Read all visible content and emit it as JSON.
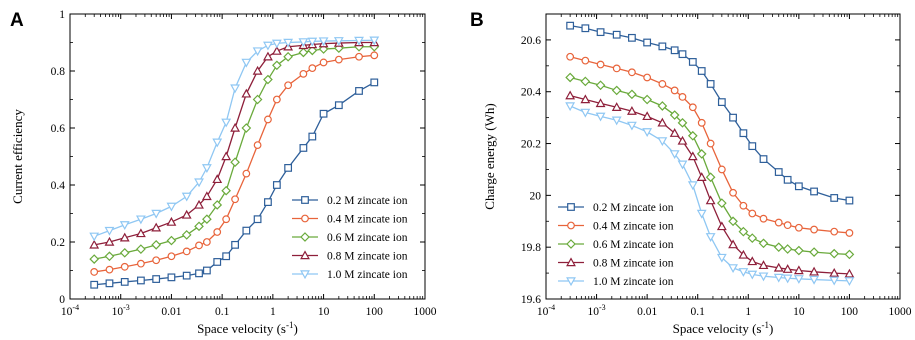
{
  "chart_data": [
    {
      "panel_label": "A",
      "type": "line",
      "xscale": "log",
      "xlabel": "Space velocity (s",
      "xlabel_sup": "-1",
      "xlabel_end": ")",
      "ylabel": "Current efficiency",
      "xlim": [
        0.0001,
        1000
      ],
      "ylim": [
        0,
        1
      ],
      "yticks": [
        "0",
        "0.2",
        "0.4",
        "0.6",
        "0.8",
        "1"
      ],
      "yticks_values": [
        0,
        0.2,
        0.4,
        0.6,
        0.8,
        1
      ],
      "xticks_values": [
        0.0001,
        0.001,
        0.01,
        0.1,
        1,
        10,
        100,
        1000
      ],
      "xticks": [
        {
          "base": "10",
          "exp": "-4"
        },
        {
          "base": "10",
          "exp": "-3"
        },
        {
          "base": "0.01",
          "exp": ""
        },
        {
          "base": "0.1",
          "exp": ""
        },
        {
          "base": "1",
          "exp": ""
        },
        {
          "base": "10",
          "exp": ""
        },
        {
          "base": "100",
          "exp": ""
        },
        {
          "base": "1000",
          "exp": ""
        }
      ],
      "grid": false,
      "legend_position": "bottom-right",
      "x": [
        0.0003,
        0.0006,
        0.0012,
        0.0025,
        0.005,
        0.01,
        0.02,
        0.035,
        0.05,
        0.08,
        0.12,
        0.18,
        0.3,
        0.5,
        0.8,
        1.2,
        2,
        4,
        6,
        10,
        20,
        50,
        100
      ],
      "series": [
        {
          "name": "0.2 M zincate ion",
          "marker": "square",
          "color": "#2e5f9a",
          "values": [
            0.05,
            0.055,
            0.06,
            0.065,
            0.07,
            0.076,
            0.082,
            0.09,
            0.1,
            0.13,
            0.15,
            0.19,
            0.24,
            0.28,
            0.34,
            0.4,
            0.46,
            0.53,
            0.57,
            0.65,
            0.68,
            0.73,
            0.76
          ]
        },
        {
          "name": "0.4 M zincate ion",
          "marker": "circle",
          "color": "#e8643b",
          "values": [
            0.095,
            0.103,
            0.113,
            0.124,
            0.136,
            0.15,
            0.167,
            0.188,
            0.2,
            0.235,
            0.28,
            0.35,
            0.44,
            0.54,
            0.63,
            0.7,
            0.75,
            0.79,
            0.81,
            0.83,
            0.84,
            0.85,
            0.855
          ]
        },
        {
          "name": "0.6 M zincate ion",
          "marker": "diamond",
          "color": "#6aaa3c",
          "values": [
            0.14,
            0.15,
            0.162,
            0.175,
            0.19,
            0.205,
            0.225,
            0.255,
            0.28,
            0.33,
            0.38,
            0.48,
            0.6,
            0.7,
            0.77,
            0.82,
            0.85,
            0.865,
            0.872,
            0.877,
            0.88,
            0.885,
            0.885
          ]
        },
        {
          "name": "0.8 M zincate ion",
          "marker": "triangle",
          "color": "#8e1f3a",
          "values": [
            0.19,
            0.2,
            0.215,
            0.23,
            0.25,
            0.27,
            0.295,
            0.33,
            0.36,
            0.42,
            0.5,
            0.6,
            0.72,
            0.8,
            0.85,
            0.87,
            0.885,
            0.89,
            0.893,
            0.896,
            0.898,
            0.9,
            0.9
          ]
        },
        {
          "name": "1.0 M zincate ion",
          "marker": "triangle-down",
          "color": "#8fc7f3",
          "values": [
            0.22,
            0.24,
            0.26,
            0.28,
            0.3,
            0.325,
            0.36,
            0.41,
            0.46,
            0.55,
            0.62,
            0.74,
            0.83,
            0.87,
            0.89,
            0.897,
            0.9,
            0.902,
            0.904,
            0.905,
            0.906,
            0.907,
            0.908
          ]
        }
      ]
    },
    {
      "panel_label": "B",
      "type": "line",
      "xscale": "log",
      "xlabel": "Space velocity (s",
      "xlabel_sup": "-1",
      "xlabel_end": ")",
      "ylabel": "Charge energy (Wh)",
      "xlim": [
        0.0001,
        1000
      ],
      "ylim": [
        19.6,
        20.7
      ],
      "yticks": [
        "19.6",
        "19.8",
        "20",
        "20.2",
        "20.4",
        "20.6"
      ],
      "yticks_values": [
        19.6,
        19.8,
        20,
        20.2,
        20.4,
        20.6
      ],
      "xticks_values": [
        0.0001,
        0.001,
        0.01,
        0.1,
        1,
        10,
        100,
        1000
      ],
      "xticks": [
        {
          "base": "10",
          "exp": "-4"
        },
        {
          "base": "10",
          "exp": "-3"
        },
        {
          "base": "0.01",
          "exp": ""
        },
        {
          "base": "0.1",
          "exp": ""
        },
        {
          "base": "1",
          "exp": ""
        },
        {
          "base": "10",
          "exp": ""
        },
        {
          "base": "100",
          "exp": ""
        },
        {
          "base": "1000",
          "exp": ""
        }
      ],
      "grid": false,
      "legend_position": "bottom-left",
      "x": [
        0.0003,
        0.0006,
        0.0012,
        0.0025,
        0.005,
        0.01,
        0.02,
        0.035,
        0.05,
        0.08,
        0.12,
        0.18,
        0.3,
        0.5,
        0.8,
        1.2,
        2,
        4,
        6,
        10,
        20,
        50,
        100
      ],
      "series": [
        {
          "name": "0.2 M zincate ion",
          "marker": "square",
          "color": "#2e5f9a",
          "values": [
            20.655,
            20.645,
            20.63,
            20.62,
            20.608,
            20.59,
            20.575,
            20.56,
            20.545,
            20.515,
            20.48,
            20.43,
            20.36,
            20.3,
            20.24,
            20.19,
            20.14,
            20.09,
            20.06,
            20.035,
            20.015,
            19.99,
            19.98
          ]
        },
        {
          "name": "0.4 M zincate ion",
          "marker": "circle",
          "color": "#e8643b",
          "values": [
            20.535,
            20.52,
            20.505,
            20.49,
            20.475,
            20.455,
            20.43,
            20.405,
            20.38,
            20.34,
            20.28,
            20.2,
            20.1,
            20.01,
            19.96,
            19.93,
            19.91,
            19.895,
            19.885,
            19.875,
            19.868,
            19.86,
            19.855
          ]
        },
        {
          "name": "0.6 M zincate ion",
          "marker": "diamond",
          "color": "#6aaa3c",
          "values": [
            20.455,
            20.44,
            20.425,
            20.405,
            20.39,
            20.37,
            20.345,
            20.31,
            20.28,
            20.23,
            20.16,
            20.07,
            19.97,
            19.9,
            19.86,
            19.835,
            19.815,
            19.8,
            19.793,
            19.787,
            19.781,
            19.775,
            19.772
          ]
        },
        {
          "name": "0.8 M zincate ion",
          "marker": "triangle",
          "color": "#8e1f3a",
          "values": [
            20.385,
            20.37,
            20.355,
            20.34,
            20.325,
            20.305,
            20.28,
            20.24,
            20.21,
            20.15,
            20.07,
            19.98,
            19.88,
            19.81,
            19.77,
            19.745,
            19.73,
            19.72,
            19.715,
            19.71,
            19.705,
            19.7,
            19.697
          ]
        },
        {
          "name": "1.0 M zincate ion",
          "marker": "triangle-down",
          "color": "#8fc7f3",
          "values": [
            20.345,
            20.32,
            20.305,
            20.29,
            20.27,
            20.245,
            20.21,
            20.16,
            20.12,
            20.04,
            19.93,
            19.84,
            19.76,
            19.72,
            19.705,
            19.695,
            19.688,
            19.683,
            19.68,
            19.678,
            19.675,
            19.672,
            19.67
          ]
        }
      ]
    }
  ]
}
